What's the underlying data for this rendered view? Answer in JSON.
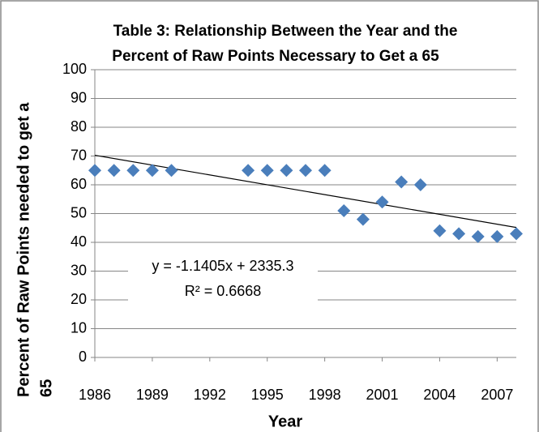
{
  "chart_data": {
    "type": "scatter",
    "title": [
      "Table 3: Relationship Between the Year and the",
      "Percent of Raw Points Necessary to Get a 65"
    ],
    "x_label": "Year",
    "y_label": [
      "Percent of Raw Points needed  to get a",
      "65"
    ],
    "x": [
      1986,
      1987,
      1988,
      1989,
      1990,
      1994,
      1995,
      1996,
      1997,
      1998,
      1999,
      2000,
      2001,
      2002,
      2003,
      2004,
      2005,
      2006,
      2007,
      2008
    ],
    "series": [
      {
        "color": "#4a7ebb",
        "values": [
          65,
          65,
          65,
          65,
          65,
          65,
          65,
          65,
          65,
          65,
          51,
          48,
          54,
          61,
          60,
          44,
          43,
          42,
          42,
          43
        ]
      }
    ],
    "trendline": {
      "slope": -1.1405,
      "intercept": 2335.3,
      "equation": "y = -1.1405x + 2335.3",
      "r_squared": "R² = 0.6668"
    },
    "xlim": [
      1986,
      2008
    ],
    "ylim": [
      0,
      100
    ],
    "xticks": [
      1986,
      1989,
      1992,
      1995,
      1998,
      2001,
      2004,
      2007
    ],
    "yticks": [
      0,
      10,
      20,
      30,
      40,
      50,
      60,
      70,
      80,
      90,
      100
    ],
    "grid": true
  }
}
